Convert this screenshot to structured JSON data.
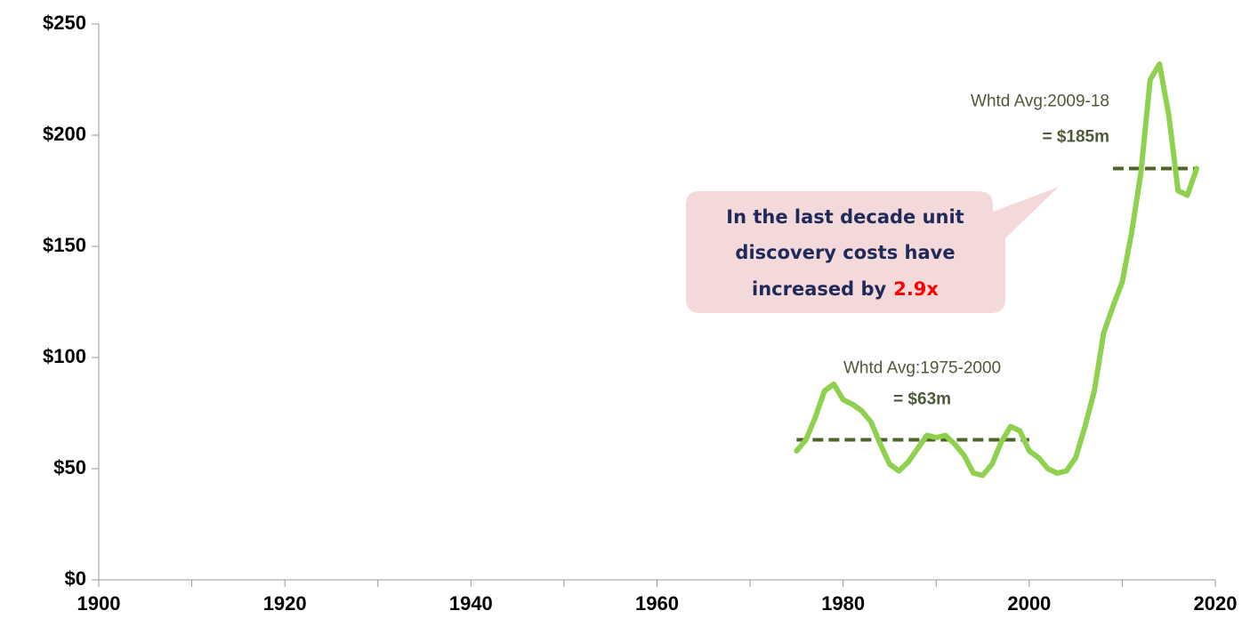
{
  "chart_data": {
    "type": "line",
    "x": [
      1975,
      1976,
      1977,
      1978,
      1979,
      1980,
      1981,
      1982,
      1983,
      1984,
      1985,
      1986,
      1987,
      1988,
      1989,
      1990,
      1991,
      1992,
      1993,
      1994,
      1995,
      1996,
      1997,
      1998,
      1999,
      2000,
      2001,
      2002,
      2003,
      2004,
      2005,
      2006,
      2007,
      2008,
      2009,
      2010,
      2011,
      2012,
      2013,
      2014,
      2015,
      2016,
      2017,
      2018
    ],
    "series": [
      {
        "color": "#8fd14f",
        "values": [
          58,
          63,
          73,
          85,
          88,
          81,
          79,
          76,
          71,
          61,
          52,
          49,
          53,
          59,
          65,
          64,
          65,
          61,
          56,
          48,
          47,
          52,
          62,
          69,
          67,
          58,
          55,
          50,
          48,
          49,
          55,
          69,
          85,
          111,
          123,
          134,
          156,
          183,
          225,
          232,
          209,
          175,
          173,
          185
        ]
      }
    ],
    "xlim": [
      1900,
      2020
    ],
    "xticks": [
      1900,
      1920,
      1940,
      1960,
      1980,
      2000,
      2020
    ],
    "xminorticks": [
      1910,
      1930,
      1950,
      1970,
      1990,
      2010
    ],
    "ylim": [
      0,
      250
    ],
    "yticks": [
      {
        "value": 0,
        "label": "$0"
      },
      {
        "value": 50,
        "label": "$50"
      },
      {
        "value": 100,
        "label": "$100"
      },
      {
        "value": 150,
        "label": "$150"
      },
      {
        "value": 200,
        "label": "$200"
      },
      {
        "value": 250,
        "label": "$250"
      }
    ],
    "averages": [
      {
        "label": "Whtd Avg:1975-2000",
        "value_label": "= $63m",
        "start": 1975,
        "end": 2000,
        "value": 63,
        "color": "#4f6228"
      },
      {
        "label": "Whtd Avg:2009-18",
        "value_label": "= $185m",
        "start": 2009,
        "end": 2018,
        "value": 185,
        "color": "#4f6228"
      }
    ],
    "callout": {
      "lines": [
        "In the last decade unit",
        "discovery costs have",
        "increased by"
      ],
      "highlight": "2.9x"
    }
  }
}
